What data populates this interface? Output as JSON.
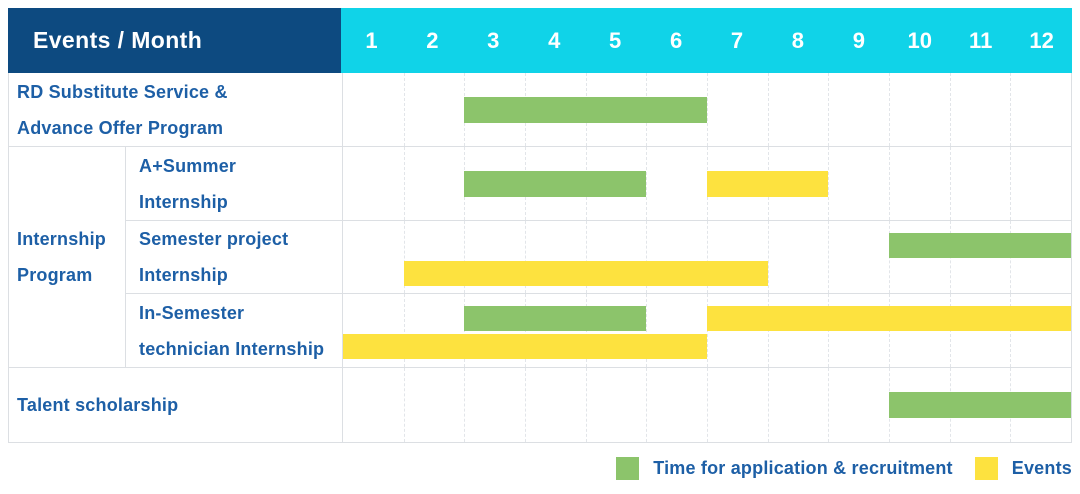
{
  "header": {
    "title": "Events / Month",
    "months": [
      "1",
      "2",
      "3",
      "4",
      "5",
      "6",
      "7",
      "8",
      "9",
      "10",
      "11",
      "12"
    ]
  },
  "group": {
    "label": "Internship Program",
    "label_lines": [
      "Internship",
      "Program"
    ]
  },
  "rows": [
    {
      "label": "RD Substitute Service & Advance Offer Program",
      "label_lines": [
        "RD Substitute Service &",
        "Advance Offer Program"
      ],
      "grouped": false,
      "bars": [
        {
          "kind": "application",
          "start": 3,
          "end": 6,
          "band": "mid"
        }
      ]
    },
    {
      "label": "A+Summer Internship",
      "label_lines": [
        "A+Summer",
        "Internship"
      ],
      "grouped": true,
      "bars": [
        {
          "kind": "application",
          "start": 3,
          "end": 5,
          "band": "mid"
        },
        {
          "kind": "event",
          "start": 7,
          "end": 8,
          "band": "mid"
        }
      ]
    },
    {
      "label": "Semester project Internship",
      "label_lines": [
        "Semester project",
        "Internship"
      ],
      "grouped": true,
      "bars": [
        {
          "kind": "application",
          "start": 10,
          "end": 12,
          "band": "top"
        },
        {
          "kind": "event",
          "start": 2,
          "end": 7,
          "band": "bottom"
        }
      ]
    },
    {
      "label": "In-Semester technician Internship",
      "label_lines": [
        "In-Semester",
        "technician Internship"
      ],
      "grouped": true,
      "bars": [
        {
          "kind": "application",
          "start": 3,
          "end": 5,
          "band": "top"
        },
        {
          "kind": "event",
          "start": 7,
          "end": 12,
          "band": "top"
        },
        {
          "kind": "event",
          "start": 1,
          "end": 6,
          "band": "bottom"
        }
      ]
    },
    {
      "label": "Talent scholarship",
      "label_lines": [
        "Talent scholarship"
      ],
      "grouped": false,
      "bars": [
        {
          "kind": "application",
          "start": 10,
          "end": 12,
          "band": "mid"
        }
      ]
    }
  ],
  "legend": {
    "items": [
      {
        "kind": "application",
        "label": "Time for application & recruitment"
      },
      {
        "kind": "event",
        "label": "Events"
      }
    ]
  },
  "colors": {
    "navy": "#0d4a80",
    "cyan": "#10d3e8",
    "application_green": "#8cc46b",
    "event_yellow": "#fde23f",
    "label_blue": "#1d5fa6"
  },
  "chart_data": {
    "type": "table",
    "title": "Events / Month",
    "categories": [
      1,
      2,
      3,
      4,
      5,
      6,
      7,
      8,
      9,
      10,
      11,
      12
    ],
    "legend": [
      "Time for application & recruitment",
      "Events"
    ],
    "rows": [
      {
        "event": "RD Substitute Service & Advance Offer Program",
        "group": null,
        "application_month_ranges": [
          [
            3,
            6
          ]
        ],
        "event_month_ranges": []
      },
      {
        "event": "A+Summer Internship",
        "group": "Internship Program",
        "application_month_ranges": [
          [
            3,
            5
          ]
        ],
        "event_month_ranges": [
          [
            7,
            8
          ]
        ]
      },
      {
        "event": "Semester project Internship",
        "group": "Internship Program",
        "application_month_ranges": [
          [
            10,
            12
          ]
        ],
        "event_month_ranges": [
          [
            2,
            7
          ]
        ]
      },
      {
        "event": "In-Semester technician Internship",
        "group": "Internship Program",
        "application_month_ranges": [
          [
            3,
            5
          ]
        ],
        "event_month_ranges": [
          [
            1,
            6
          ],
          [
            7,
            12
          ]
        ]
      },
      {
        "event": "Talent scholarship",
        "group": null,
        "application_month_ranges": [
          [
            10,
            12
          ]
        ],
        "event_month_ranges": []
      }
    ]
  }
}
